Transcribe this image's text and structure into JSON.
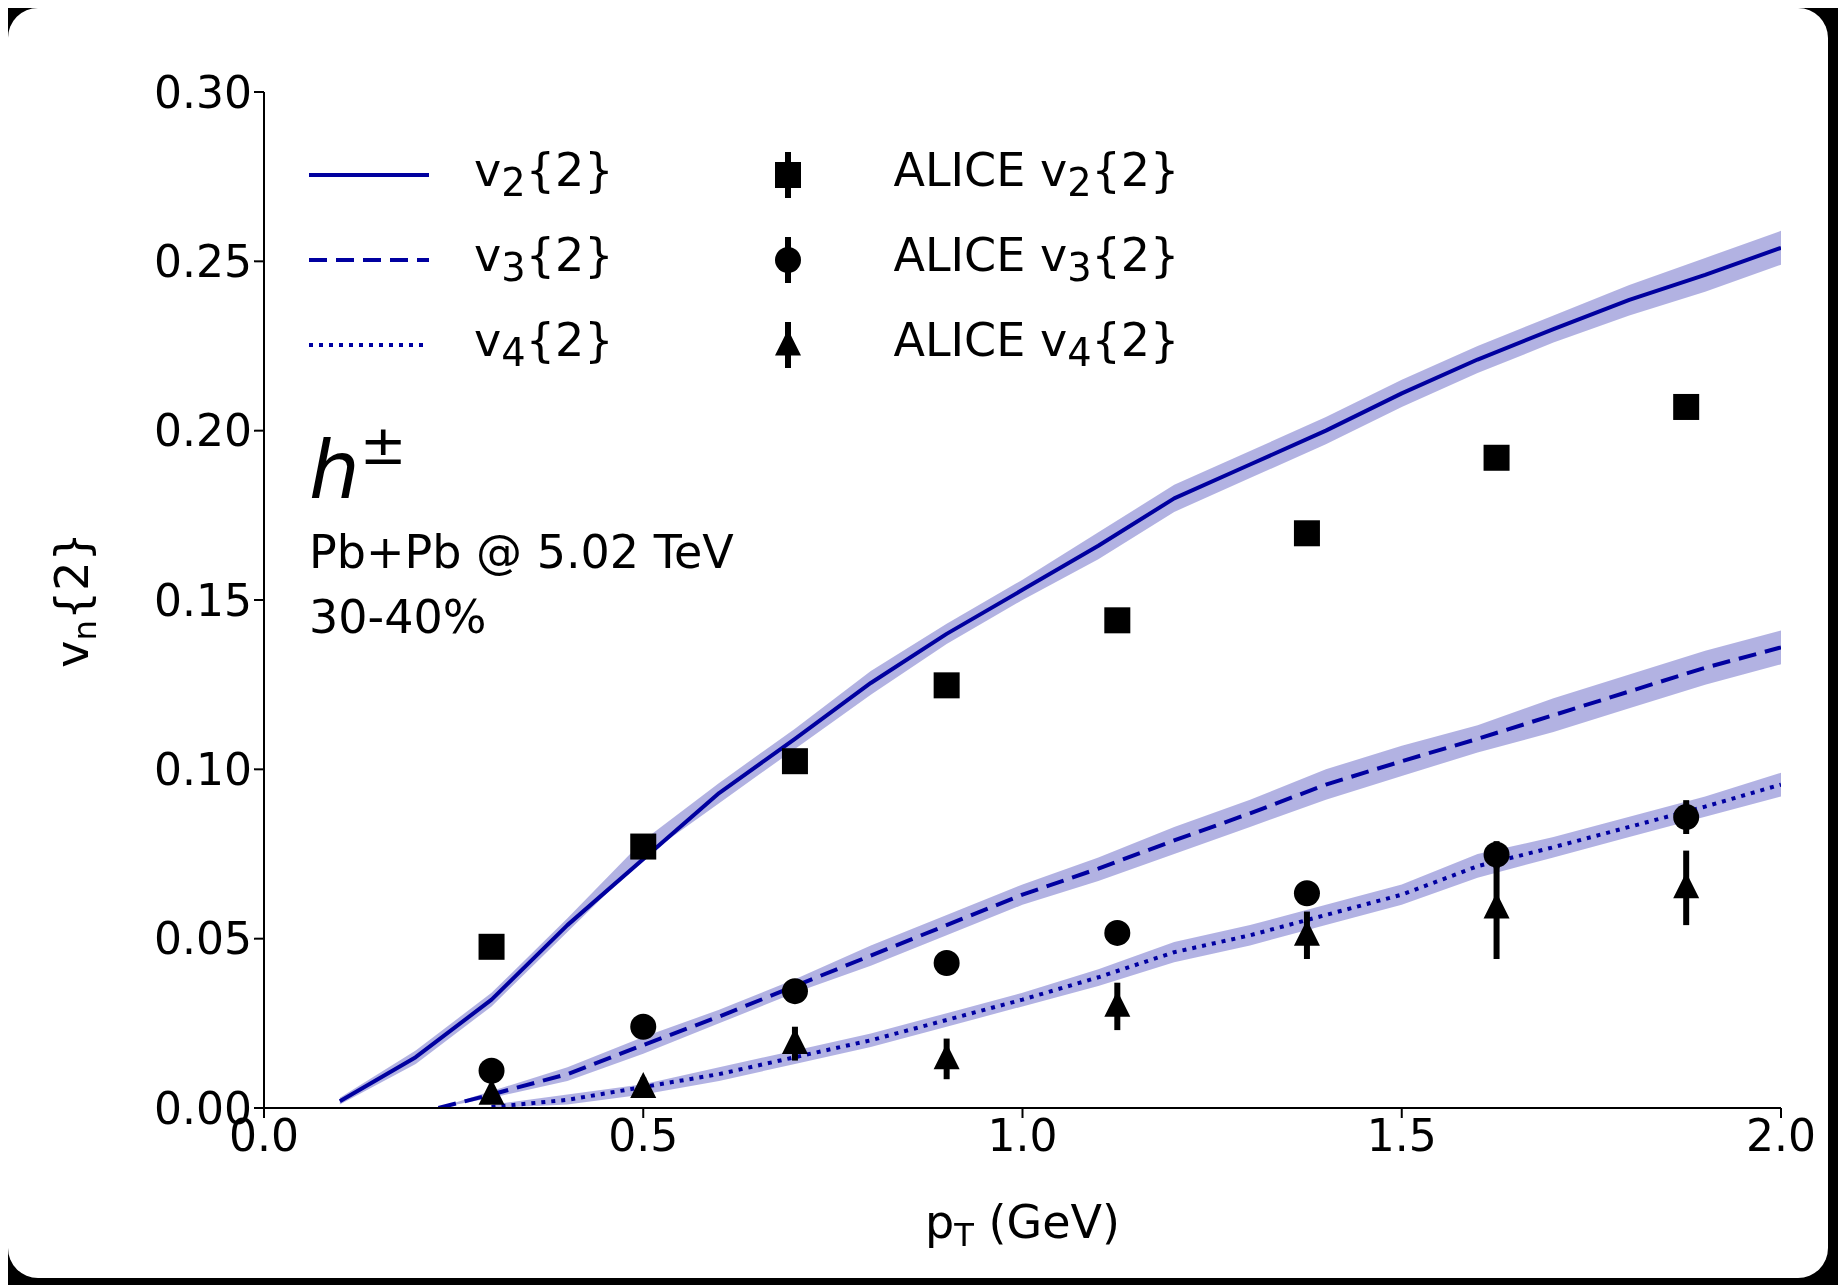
{
  "chart_data": {
    "type": "line",
    "xlabel": "p$_{T}$ (GeV)",
    "ylabel": "v$_{n}${2}",
    "legend": "top left",
    "xlim": [
      0,
      2
    ],
    "xticks": [
      {
        "value": 0,
        "label": "0.0"
      },
      {
        "value": 0.5,
        "label": "0.5"
      },
      {
        "value": 1,
        "label": "1.0"
      },
      {
        "value": 1.5,
        "label": "1.5"
      },
      {
        "value": 2,
        "label": "2.0"
      }
    ],
    "ylim": [
      0,
      0.3
    ],
    "yticks": [
      {
        "value": 0,
        "label": "0.00"
      },
      {
        "value": 0.05,
        "label": "0.05"
      },
      {
        "value": 0.1,
        "label": "0.10"
      },
      {
        "value": 0.15,
        "label": "0.15"
      },
      {
        "value": 0.2,
        "label": "0.20"
      },
      {
        "value": 0.25,
        "label": "0.25"
      },
      {
        "value": 0.3,
        "label": "0.30"
      }
    ],
    "annotations": [
      "h$^{±}$",
      "Pb+Pb @ 5.02 TeV",
      "30-40%"
    ],
    "series": [
      {
        "name": "v$_{2}${2}",
        "color": "#00009f",
        "line_style": "solid",
        "marker": "none",
        "x": [
          0.1,
          0.2,
          0.3,
          0.4,
          0.5,
          0.6,
          0.7,
          0.8,
          0.9,
          1.0,
          1.1,
          1.2,
          1.3,
          1.4,
          1.5,
          1.6,
          1.7,
          1.8,
          1.9,
          2.0
        ],
        "values": [
          0.002,
          0.015,
          0.032,
          0.054,
          null,
          0.093,
          0.109,
          0.1255,
          0.14,
          0.153,
          0.166,
          0.18,
          0.19,
          0.2,
          0.211,
          0.221,
          0.23,
          0.2386,
          0.246,
          0.254
        ],
        "lower": [
          0.001,
          0.013,
          0.03,
          0.052,
          0.074,
          0.09,
          0.106,
          0.122,
          0.137,
          0.15,
          0.162,
          0.176,
          0.186,
          0.196,
          0.207,
          0.217,
          0.226,
          0.234,
          0.241,
          0.249
        ],
        "upper": [
          0.003,
          0.017,
          0.034,
          0.056,
          0.079,
          0.096,
          0.112,
          0.129,
          0.143,
          0.156,
          0.17,
          0.184,
          0.194,
          0.204,
          0.215,
          0.225,
          0.234,
          0.243,
          0.251,
          0.259
        ]
      },
      {
        "name": "v$_{3}${2}",
        "color": "#0000a0",
        "line_style": "dashed",
        "marker": "none",
        "x": [
          0.23,
          0.3,
          0.4,
          0.5,
          0.6,
          0.7,
          0.8,
          0.9,
          1.0,
          1.1,
          1.2,
          1.3,
          1.4,
          1.5,
          1.6,
          1.7,
          1.8,
          1.9,
          2.0
        ],
        "values": [
          0,
          0.004,
          0.01,
          0.0186,
          0.027,
          null,
          0.045,
          0.054,
          0.063,
          0.0707,
          0.079,
          0.087,
          0.0955,
          0.1024,
          0.109,
          0.116,
          0.123,
          0.13,
          0.136
        ],
        "lower": [
          0,
          0.003,
          0.008,
          0.016,
          0.025,
          0.034,
          0.042,
          0.051,
          0.06,
          0.067,
          0.075,
          0.083,
          0.091,
          0.098,
          0.105,
          0.111,
          0.118,
          0.125,
          0.131
        ],
        "upper": [
          0,
          0.005,
          0.012,
          0.021,
          0.029,
          0.038,
          0.048,
          0.057,
          0.066,
          0.074,
          0.083,
          0.091,
          0.1,
          0.107,
          0.113,
          0.121,
          0.128,
          0.135,
          0.141
        ]
      },
      {
        "name": "v$_{4}${2}",
        "color": "#0000a1",
        "line_style": "dotted",
        "marker": "none",
        "x": [
          0.3,
          0.4,
          0.5,
          0.6,
          0.7,
          0.8,
          0.9,
          1.0,
          1.1,
          1.2,
          1.3,
          1.4,
          1.5,
          1.6,
          1.7,
          1.8,
          1.9,
          2.0
        ],
        "values": [
          0.0003,
          0.0024,
          null,
          0.01,
          0.015,
          0.02,
          0.026,
          0.032,
          0.0386,
          0.046,
          0.051,
          0.057,
          0.063,
          0.0714,
          0.077,
          0.083,
          0.089,
          0.0955
        ],
        "lower": [
          0,
          0.001,
          0.004,
          0.008,
          0.013,
          0.018,
          0.024,
          0.03,
          0.036,
          0.043,
          0.048,
          0.054,
          0.06,
          0.068,
          0.074,
          0.08,
          0.086,
          0.092
        ],
        "upper": [
          0.001,
          0.004,
          0.007,
          0.012,
          0.017,
          0.022,
          0.028,
          0.034,
          0.041,
          0.049,
          0.054,
          0.06,
          0.066,
          0.075,
          0.08,
          0.086,
          0.092,
          0.099
        ]
      },
      {
        "name": "ALICE v$_{2}${2}",
        "type": "scatter",
        "color": "#000000",
        "marker": "square",
        "x": [
          0.3,
          0.5,
          0.7,
          0.9,
          1.125,
          1.375,
          1.625,
          1.875
        ],
        "values": [
          0.0476,
          0.0772,
          0.1024,
          0.1248,
          0.144,
          0.1697,
          0.192,
          0.207
        ],
        "errors": [
          0.001,
          0.001,
          0.001,
          0.002,
          0.001,
          0.001,
          0.002,
          0.002
        ]
      },
      {
        "name": "ALICE v$_{3}${2}",
        "type": "scatter",
        "color": "#000000",
        "marker": "circle",
        "x": [
          0.3,
          0.5,
          0.7,
          0.9,
          1.125,
          1.375,
          1.625,
          1.875
        ],
        "values": [
          0.011,
          0.024,
          0.0345,
          0.0428,
          0.0517,
          0.0634,
          0.0748,
          0.0859
        ],
        "errors": [
          0.001,
          0.001,
          0.001,
          0.001,
          0.001,
          0.002,
          0.004,
          0.005
        ]
      },
      {
        "name": "ALICE v$_{4}${2}",
        "type": "scatter",
        "color": "#000000",
        "marker": "triangle",
        "x": [
          0.3,
          0.5,
          0.7,
          0.9,
          1.125,
          1.375,
          1.625,
          1.875
        ],
        "values": [
          0.004,
          0.006,
          0.019,
          0.0145,
          0.03,
          0.051,
          0.059,
          0.065
        ],
        "errors": [
          0.002,
          0.003,
          0.005,
          0.006,
          0.007,
          0.007,
          0.015,
          0.011
        ]
      }
    ]
  }
}
